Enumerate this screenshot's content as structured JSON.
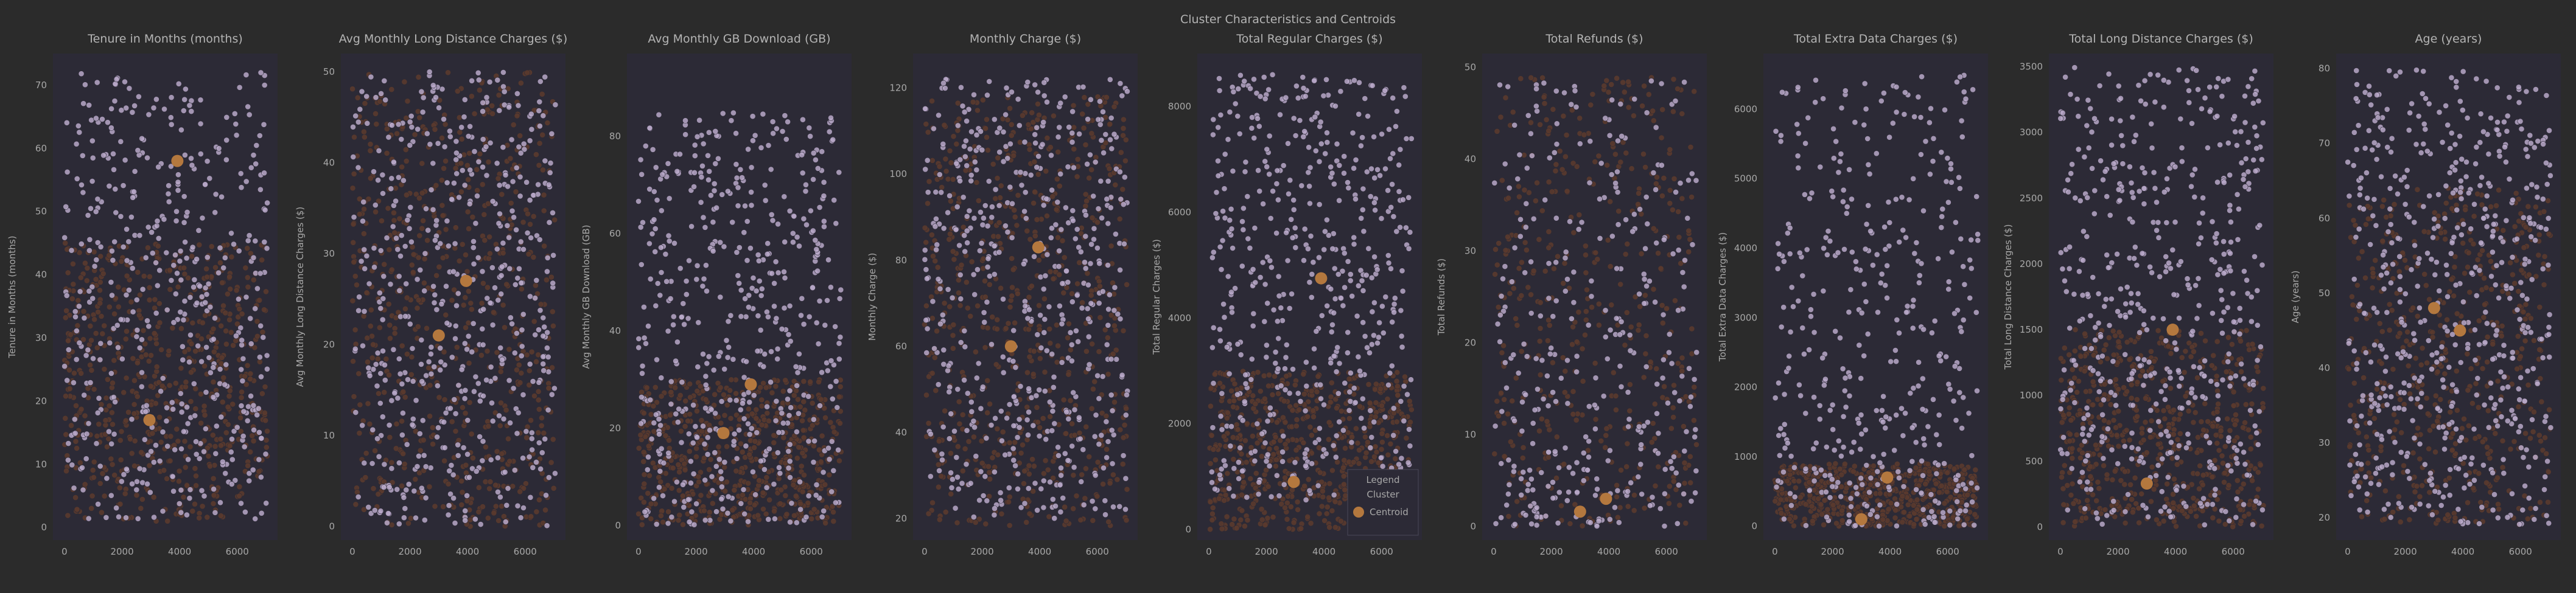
{
  "figure": {
    "title": "Cluster Characteristics and Centroids"
  },
  "colors": {
    "background": "#2b2b2b",
    "plot_bg": "#2c2a36",
    "cluster_a": "#b9a8c8",
    "cluster_b": "#5a3a2e",
    "centroid": "#b4783e",
    "text": "#a8a8a8"
  },
  "legend": {
    "title": "Legend",
    "cluster_label": "Cluster",
    "centroid_label": "Centroid"
  },
  "chart_data": [
    {
      "type": "scatter",
      "title": "Tenure in Months (months)",
      "ylabel": "Tenure in Months (months)",
      "xlim": [
        -400,
        7400
      ],
      "ylim": [
        -2,
        75
      ],
      "xticks": [
        0,
        2000,
        4000,
        6000
      ],
      "yticks": [
        0,
        10,
        20,
        30,
        40,
        50,
        60,
        70
      ],
      "centroids": [
        {
          "x": 2950,
          "y": 17
        },
        {
          "x": 3920,
          "y": 58
        }
      ],
      "clusters": {
        "a": {
          "ymin": 1,
          "ymax": 72,
          "n": 480
        },
        "b": {
          "ymin": 1,
          "ymax": 45,
          "n": 620
        }
      }
    },
    {
      "type": "scatter",
      "title": "Avg Monthly Long Distance Charges ($)",
      "ylabel": "Avg Monthly Long Distance Charges ($)",
      "xlim": [
        -400,
        7400
      ],
      "ylim": [
        -1.5,
        52
      ],
      "xticks": [
        0,
        2000,
        4000,
        6000
      ],
      "yticks": [
        0,
        10,
        20,
        30,
        40,
        50
      ],
      "centroids": [
        {
          "x": 3000,
          "y": 21
        },
        {
          "x": 3950,
          "y": 27
        }
      ],
      "clusters": {
        "a": {
          "ymin": 0,
          "ymax": 50,
          "n": 520
        },
        "b": {
          "ymin": 0,
          "ymax": 50,
          "n": 620
        }
      }
    },
    {
      "type": "scatter",
      "title": "Avg Monthly GB Download (GB)",
      "ylabel": "Avg Monthly GB Download (GB)",
      "xlim": [
        -400,
        7400
      ],
      "ylim": [
        -3,
        97
      ],
      "xticks": [
        0,
        2000,
        4000,
        6000
      ],
      "yticks": [
        0,
        20,
        40,
        60,
        80
      ],
      "centroids": [
        {
          "x": 2950,
          "y": 19
        },
        {
          "x": 3900,
          "y": 29
        }
      ],
      "clusters": {
        "a": {
          "ymin": 0,
          "ymax": 85,
          "n": 520
        },
        "b": {
          "ymin": 0,
          "ymax": 30,
          "n": 620
        }
      }
    },
    {
      "type": "scatter",
      "title": "Monthly Charge ($)",
      "ylabel": "Monthly Charge ($)",
      "xlim": [
        -400,
        7400
      ],
      "ylim": [
        15,
        128
      ],
      "xticks": [
        0,
        2000,
        4000,
        6000
      ],
      "yticks": [
        20,
        40,
        60,
        80,
        100,
        120
      ],
      "centroids": [
        {
          "x": 3950,
          "y": 83
        },
        {
          "x": 3000,
          "y": 60
        }
      ],
      "clusters": {
        "a": {
          "ymin": 20,
          "ymax": 122,
          "n": 520
        },
        "b": {
          "ymin": 18,
          "ymax": 118,
          "n": 620
        }
      }
    },
    {
      "type": "scatter",
      "title": "Total Regular Charges ($)",
      "ylabel": "Total Regular Charges ($)",
      "xlim": [
        -400,
        7400
      ],
      "ylim": [
        -200,
        9000
      ],
      "xticks": [
        0,
        2000,
        4000,
        6000
      ],
      "yticks": [
        0,
        2000,
        4000,
        6000,
        8000
      ],
      "centroids": [
        {
          "x": 3900,
          "y": 4750
        },
        {
          "x": 2950,
          "y": 900
        }
      ],
      "clusters": {
        "a": {
          "ymin": 500,
          "ymax": 8600,
          "n": 520
        },
        "b": {
          "ymin": 0,
          "ymax": 3000,
          "n": 620
        }
      }
    },
    {
      "type": "scatter",
      "title": "Total Refunds ($)",
      "ylabel": "Total Refunds ($)",
      "xlim": [
        -400,
        7400
      ],
      "ylim": [
        -1.5,
        51.5
      ],
      "xticks": [
        0,
        2000,
        4000,
        6000
      ],
      "yticks": [
        0,
        10,
        20,
        30,
        40,
        50
      ],
      "centroids": [
        {
          "x": 3000,
          "y": 1.6
        },
        {
          "x": 3900,
          "y": 3.0
        }
      ],
      "clusters": {
        "a": {
          "ymin": 0,
          "ymax": 49,
          "n": 330
        },
        "b": {
          "ymin": 0,
          "ymax": 49,
          "n": 420
        }
      }
    },
    {
      "type": "scatter",
      "title": "Total Extra Data Charges ($)",
      "ylabel": "Total Extra Data Charges ($)",
      "xlim": [
        -400,
        7400
      ],
      "ylim": [
        -200,
        6800
      ],
      "xticks": [
        0,
        2000,
        4000,
        6000
      ],
      "yticks": [
        0,
        1000,
        2000,
        3000,
        4000,
        5000,
        6000
      ],
      "centroids": [
        {
          "x": 3900,
          "y": 700
        },
        {
          "x": 3000,
          "y": 100
        }
      ],
      "clusters": {
        "a": {
          "ymin": 0,
          "ymax": 6500,
          "n": 420
        },
        "b": {
          "ymin": 0,
          "ymax": 900,
          "n": 620
        }
      }
    },
    {
      "type": "scatter",
      "title": "Total Long Distance Charges ($)",
      "ylabel": "Total Long Distance Charges ($)",
      "xlim": [
        -400,
        7400
      ],
      "ylim": [
        -100,
        3600
      ],
      "xticks": [
        0,
        2000,
        4000,
        6000
      ],
      "yticks": [
        0,
        500,
        1000,
        1500,
        2000,
        2500,
        3000,
        3500
      ],
      "centroids": [
        {
          "x": 3900,
          "y": 1500
        },
        {
          "x": 3000,
          "y": 330
        }
      ],
      "clusters": {
        "a": {
          "ymin": 0,
          "ymax": 3500,
          "n": 520
        },
        "b": {
          "ymin": 0,
          "ymax": 1500,
          "n": 620
        }
      }
    },
    {
      "type": "scatter",
      "title": "Age (years)",
      "ylabel": "Age (years)",
      "xlim": [
        -400,
        7400
      ],
      "ylim": [
        17,
        82
      ],
      "xticks": [
        0,
        2000,
        4000,
        6000
      ],
      "yticks": [
        20,
        30,
        40,
        50,
        60,
        70,
        80
      ],
      "centroids": [
        {
          "x": 3000,
          "y": 48
        },
        {
          "x": 3900,
          "y": 45
        }
      ],
      "clusters": {
        "a": {
          "ymin": 19,
          "ymax": 80,
          "n": 560
        },
        "b": {
          "ymin": 19,
          "ymax": 64,
          "n": 520
        }
      }
    }
  ]
}
